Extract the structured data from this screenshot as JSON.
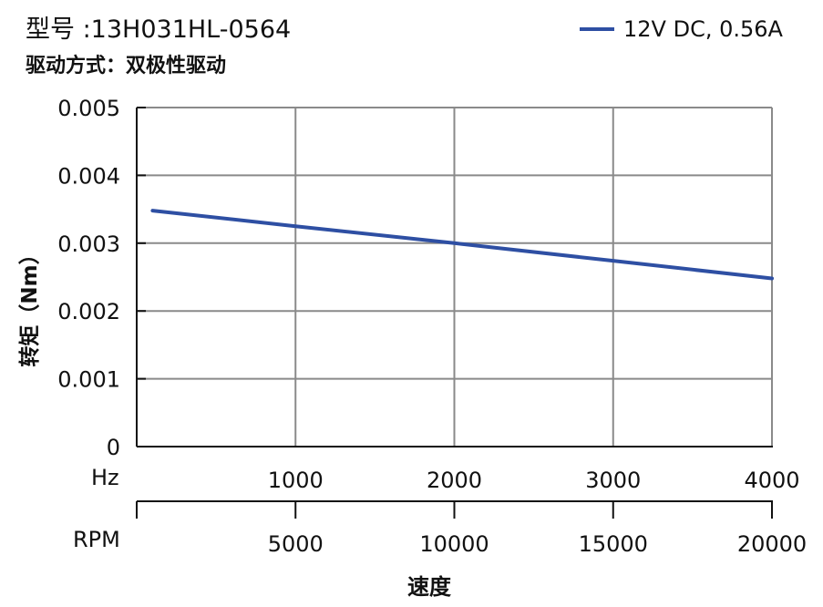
{
  "header": {
    "model": "型号 :13H031HL-0564",
    "drive": "驱动方式：双极性驱动"
  },
  "chart_data": {
    "type": "line",
    "title": "",
    "xlabel": "速度",
    "ylabel": "转矩（Nm）",
    "x_unit_primary": "Hz",
    "x_unit_secondary": "RPM",
    "xlim": [
      0,
      4000
    ],
    "ylim": [
      0,
      0.005
    ],
    "x_ticks": [
      "1000",
      "2000",
      "3000",
      "4000"
    ],
    "x_ticks_rpm": [
      "5000",
      "10000",
      "15000",
      "20000"
    ],
    "y_ticks": [
      "0",
      "0.001",
      "0.002",
      "0.003",
      "0.004",
      "0.005"
    ],
    "grid": true,
    "legend_position": "top-right",
    "series": [
      {
        "name": "12V DC, 0.56A",
        "color": "#2e4fa3",
        "x": [
          100,
          1000,
          2000,
          3000,
          4000
        ],
        "y": [
          0.00348,
          0.00325,
          0.003,
          0.00274,
          0.00248
        ]
      }
    ]
  }
}
